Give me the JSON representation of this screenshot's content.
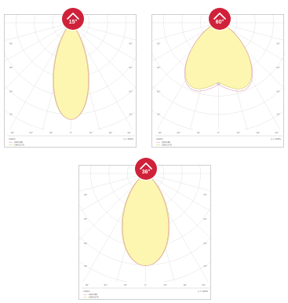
{
  "chart_data": [
    {
      "type": "polar",
      "title": "15°",
      "angle_ticks": [
        "90°",
        "60°",
        "30°",
        "0°",
        "30°",
        "60°",
        "90°"
      ],
      "radial_ticks": [
        "1000",
        "2000",
        "3000",
        "4000"
      ],
      "beam_angle_deg": 15,
      "unit": "cd/klm",
      "eta": "η = 100%",
      "legend": [
        "C0/C180",
        "C90/C270"
      ],
      "series_colors": {
        "C0/C180": "#e0a0b4",
        "C90/C270": "#d8c878"
      }
    },
    {
      "type": "polar",
      "title": "60°",
      "angle_ticks": [
        "90°",
        "60°",
        "30°",
        "0°",
        "30°",
        "60°",
        "90°"
      ],
      "radial_ticks": [
        "100",
        "200",
        "300",
        "400",
        "500",
        "600"
      ],
      "beam_angle_deg": 60,
      "unit": "cd/klm",
      "eta": "η = 100%",
      "legend": [
        "C0/C180",
        "C90/C270"
      ],
      "series_colors": {
        "C0/C180": "#e0a0b4",
        "C90/C270": "#d8c878"
      }
    },
    {
      "type": "polar",
      "title": "36°",
      "angle_ticks": [
        "90°",
        "60°",
        "30°",
        "0°",
        "30°",
        "60°",
        "90°"
      ],
      "radial_ticks": [
        "500",
        "1000",
        "1500",
        "2000"
      ],
      "beam_angle_deg": 36,
      "unit": "cd/klm",
      "eta": "η = 100%",
      "legend": [
        "C0/C180",
        "C90/C270"
      ],
      "series_colors": {
        "C0/C180": "#e0a0b4",
        "C90/C270": "#d8c878"
      }
    }
  ],
  "style": {
    "badge_color": "#d0213a",
    "fill_color": "#fdf6b0",
    "grid_color": "#dcdcdc"
  }
}
